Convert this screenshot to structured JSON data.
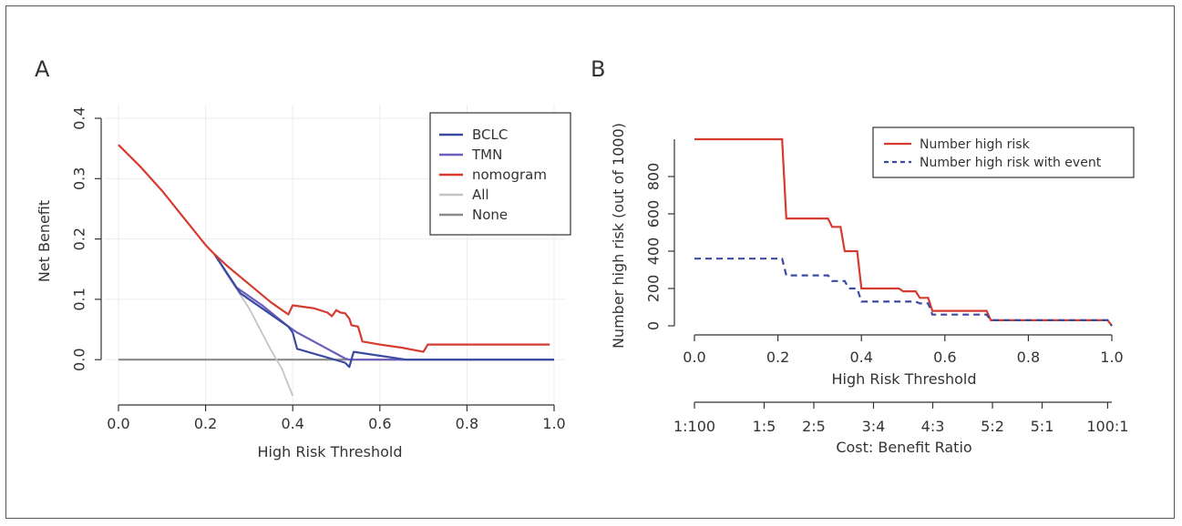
{
  "panels": {
    "a_label": "A",
    "b_label": "B"
  },
  "colors": {
    "bclc": "#3b4aa0",
    "tmn": "#6a5fbf",
    "nomogram": "#d63b2f",
    "all": "#c4c4c4",
    "none": "#8a8a8a",
    "axis": "#333333",
    "grid": "#ececec"
  },
  "chart_data": [
    {
      "type": "line",
      "xlabel": "High Risk Threshold",
      "ylabel": "Net Benefit",
      "xlim": [
        0,
        1
      ],
      "ylim": [
        -0.06,
        0.4
      ],
      "x_ticks": [
        "0.0",
        "0.2",
        "0.4",
        "0.6",
        "0.8",
        "1.0"
      ],
      "y_ticks": [
        "0.0",
        "0.1",
        "0.2",
        "0.3",
        "0.4"
      ],
      "grid": true,
      "legend_position": "top-right",
      "series": [
        {
          "name": "BCLC",
          "color_key": "bclc",
          "points": [
            [
              0.22,
              0.175
            ],
            [
              0.28,
              0.11
            ],
            [
              0.39,
              0.055
            ],
            [
              0.4,
              0.045
            ],
            [
              0.41,
              0.018
            ],
            [
              0.52,
              -0.005
            ],
            [
              0.53,
              -0.012
            ],
            [
              0.54,
              0.013
            ],
            [
              0.66,
              0.0
            ],
            [
              1.0,
              0.0
            ]
          ]
        },
        {
          "name": "TMN",
          "color_key": "tmn",
          "points": [
            [
              0.22,
              0.175
            ],
            [
              0.27,
              0.12
            ],
            [
              0.33,
              0.09
            ],
            [
              0.39,
              0.055
            ],
            [
              0.41,
              0.045
            ],
            [
              0.5,
              0.01
            ],
            [
              0.52,
              0.002
            ],
            [
              0.53,
              0.0
            ],
            [
              1.0,
              0.0
            ]
          ]
        },
        {
          "name": "nomogram",
          "color_key": "nomogram",
          "points": [
            [
              0.0,
              0.356
            ],
            [
              0.05,
              0.32
            ],
            [
              0.1,
              0.28
            ],
            [
              0.15,
              0.235
            ],
            [
              0.2,
              0.19
            ],
            [
              0.22,
              0.175
            ],
            [
              0.25,
              0.155
            ],
            [
              0.3,
              0.125
            ],
            [
              0.35,
              0.095
            ],
            [
              0.39,
              0.075
            ],
            [
              0.4,
              0.09
            ],
            [
              0.45,
              0.085
            ],
            [
              0.48,
              0.078
            ],
            [
              0.49,
              0.072
            ],
            [
              0.5,
              0.082
            ],
            [
              0.51,
              0.078
            ],
            [
              0.52,
              0.077
            ],
            [
              0.53,
              0.068
            ],
            [
              0.535,
              0.057
            ],
            [
              0.55,
              0.055
            ],
            [
              0.56,
              0.03
            ],
            [
              0.6,
              0.025
            ],
            [
              0.65,
              0.02
            ],
            [
              0.7,
              0.013
            ],
            [
              0.71,
              0.025
            ],
            [
              0.99,
              0.025
            ]
          ]
        },
        {
          "name": "All",
          "color_key": "all",
          "points": [
            [
              0.22,
              0.175
            ],
            [
              0.25,
              0.14
            ],
            [
              0.3,
              0.085
            ],
            [
              0.35,
              0.016
            ],
            [
              0.375,
              -0.015
            ],
            [
              0.4,
              -0.06
            ]
          ]
        },
        {
          "name": "None",
          "color_key": "none",
          "points": [
            [
              0.0,
              0.0
            ],
            [
              1.0,
              0.0
            ]
          ]
        }
      ]
    },
    {
      "type": "line",
      "xlabel": "High Risk Threshold",
      "ylabel": "Number high risk (out of 1000)",
      "secondary_xlabel": "Cost: Benefit Ratio",
      "xlim": [
        0,
        1
      ],
      "ylim": [
        0,
        1000
      ],
      "x_ticks": [
        "0.0",
        "0.2",
        "0.4",
        "0.6",
        "0.8",
        "1.0"
      ],
      "y_ticks": [
        "0",
        "200",
        "400",
        "600",
        "800"
      ],
      "secondary_x_ticks": [
        "1:100",
        "1:5",
        "2:5",
        "3:4",
        "4:3",
        "5:2",
        "5:1",
        "100:1"
      ],
      "secondary_x_tick_positions": [
        0.0,
        0.167,
        0.286,
        0.429,
        0.571,
        0.714,
        0.833,
        0.99
      ],
      "grid": false,
      "legend_position": "top-right",
      "series": [
        {
          "name": "Number high risk",
          "style": "solid",
          "color_key": "nomogram",
          "points": [
            [
              0.0,
              1000
            ],
            [
              0.21,
              1000
            ],
            [
              0.22,
              575
            ],
            [
              0.32,
              575
            ],
            [
              0.33,
              530
            ],
            [
              0.35,
              530
            ],
            [
              0.36,
              400
            ],
            [
              0.39,
              400
            ],
            [
              0.4,
              200
            ],
            [
              0.49,
              200
            ],
            [
              0.5,
              185
            ],
            [
              0.53,
              185
            ],
            [
              0.54,
              150
            ],
            [
              0.56,
              150
            ],
            [
              0.57,
              80
            ],
            [
              0.7,
              80
            ],
            [
              0.71,
              30
            ],
            [
              0.99,
              30
            ],
            [
              1.0,
              0
            ]
          ]
        },
        {
          "name": "Number high risk with event",
          "style": "dashed",
          "color_key": "bclc",
          "points": [
            [
              0.0,
              360
            ],
            [
              0.21,
              360
            ],
            [
              0.22,
              270
            ],
            [
              0.32,
              270
            ],
            [
              0.33,
              240
            ],
            [
              0.36,
              240
            ],
            [
              0.37,
              200
            ],
            [
              0.39,
              200
            ],
            [
              0.4,
              130
            ],
            [
              0.53,
              130
            ],
            [
              0.54,
              120
            ],
            [
              0.56,
              120
            ],
            [
              0.57,
              60
            ],
            [
              0.7,
              60
            ],
            [
              0.71,
              30
            ],
            [
              0.99,
              30
            ],
            [
              1.0,
              0
            ]
          ]
        }
      ]
    }
  ]
}
